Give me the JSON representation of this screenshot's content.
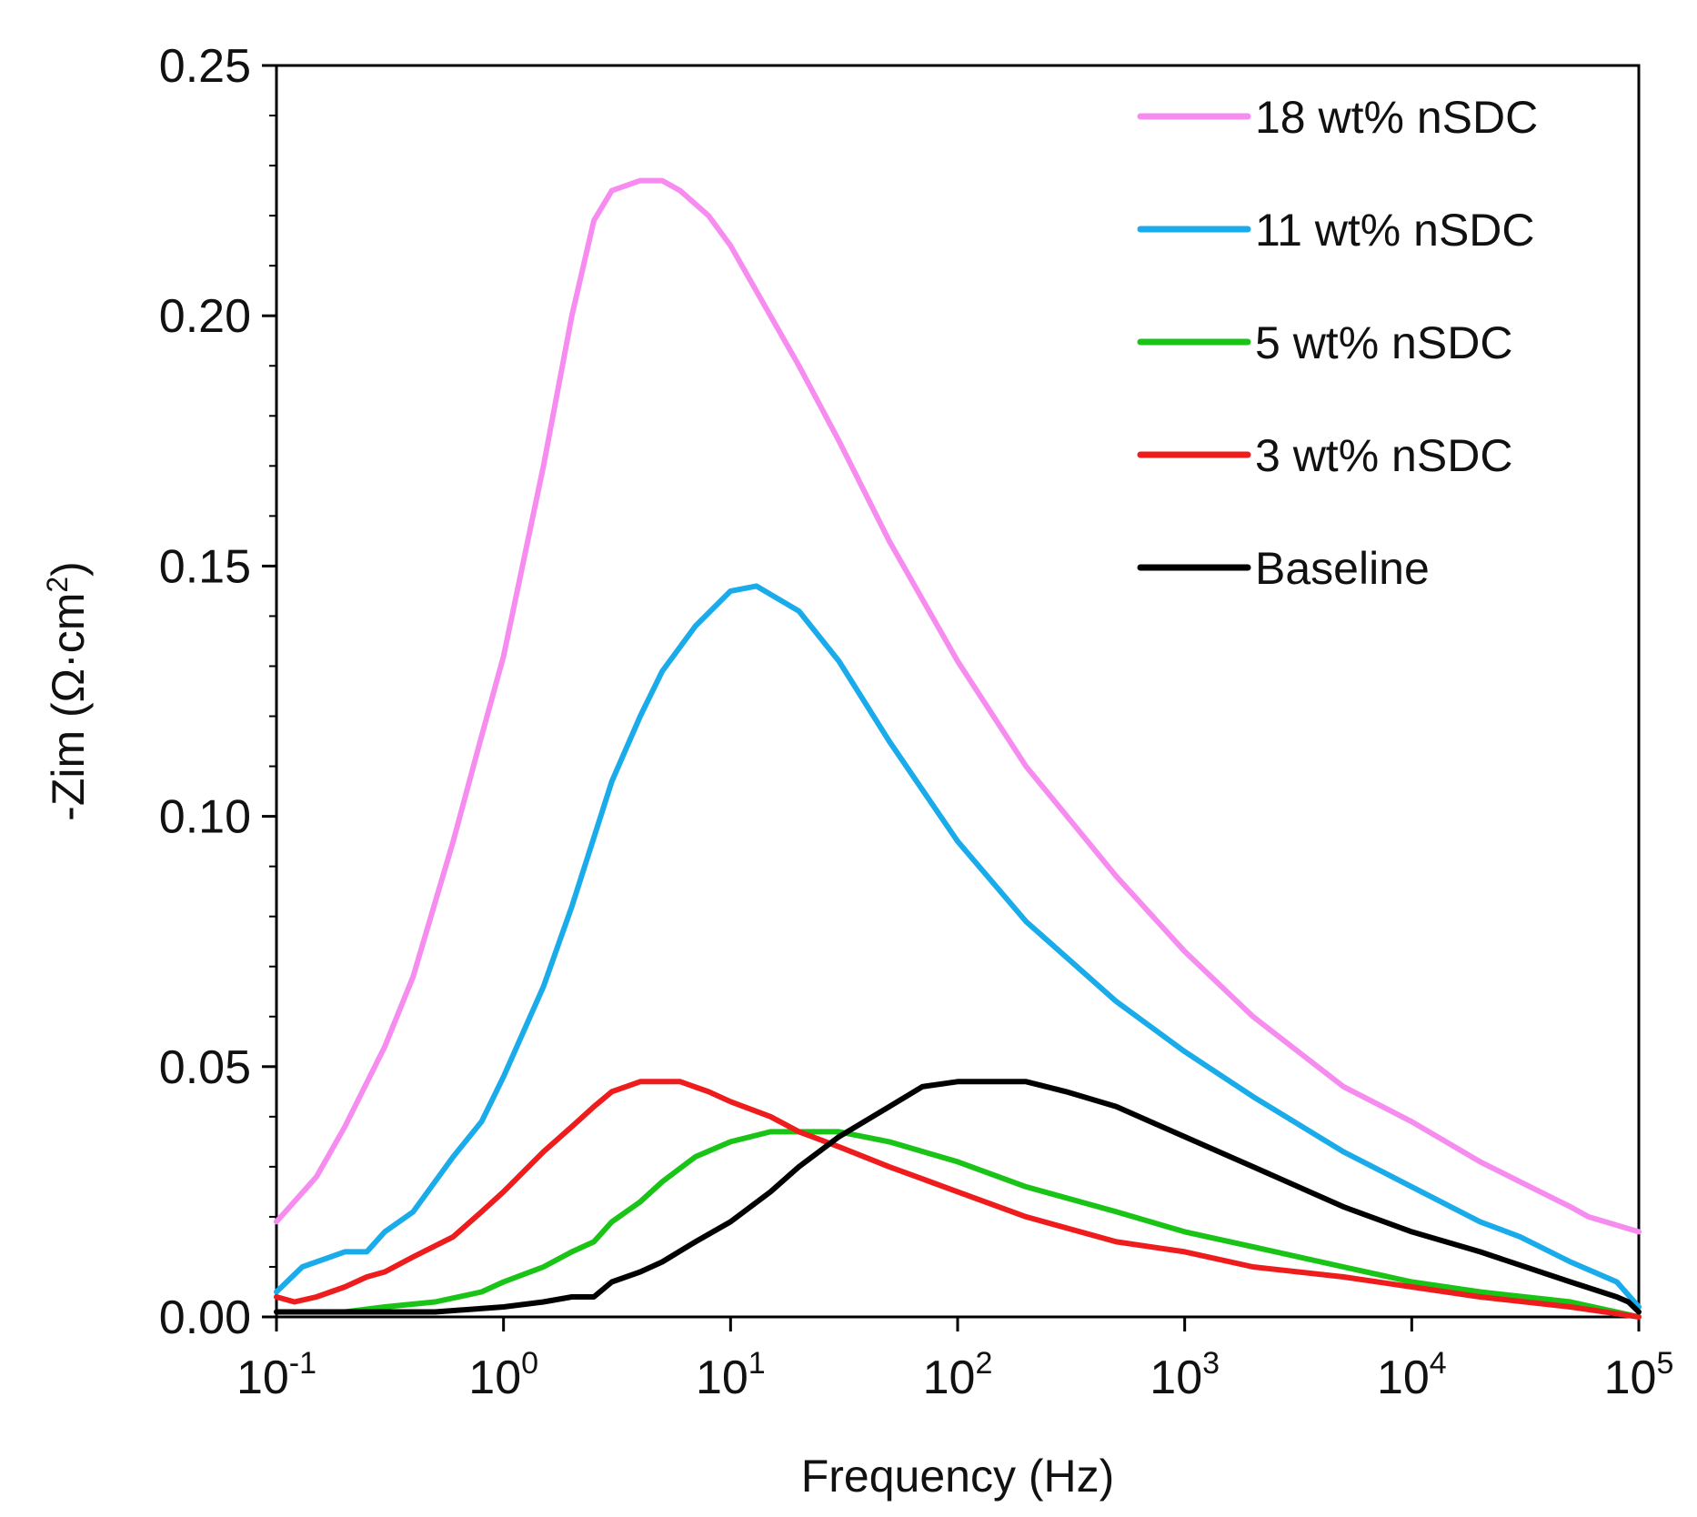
{
  "chart_data": {
    "type": "line",
    "title": "",
    "xlabel": "Frequency (Hz)",
    "ylabel_text": "-Zim (Ω·cm",
    "ylabel_sup": "2",
    "ylabel_close": ")",
    "x_scale": "log",
    "xlim": [
      0.1,
      100000
    ],
    "ylim": [
      0,
      0.25
    ],
    "x_ticks": [
      {
        "base": "10",
        "exp": "-1",
        "value": 0.1
      },
      {
        "base": "10",
        "exp": "0",
        "value": 1
      },
      {
        "base": "10",
        "exp": "1",
        "value": 10
      },
      {
        "base": "10",
        "exp": "2",
        "value": 100
      },
      {
        "base": "10",
        "exp": "3",
        "value": 1000
      },
      {
        "base": "10",
        "exp": "4",
        "value": 10000
      },
      {
        "base": "10",
        "exp": "5",
        "value": 100000
      }
    ],
    "y_ticks": [
      "0.00",
      "0.05",
      "0.10",
      "0.15",
      "0.20",
      "0.25"
    ],
    "y_tick_values": [
      0,
      0.05,
      0.1,
      0.15,
      0.2,
      0.25
    ],
    "grid": false,
    "legend_position": "top-right",
    "series": [
      {
        "name": "18 wt% nSDC",
        "color": "#f78cf0",
        "x": [
          0.1,
          0.15,
          0.2,
          0.3,
          0.4,
          0.6,
          0.8,
          1,
          1.5,
          2,
          2.5,
          3,
          4,
          5,
          6,
          8,
          10,
          20,
          30,
          50,
          100,
          200,
          500,
          1000,
          2000,
          5000,
          10000,
          20000,
          30000,
          50000,
          60000,
          100000
        ],
        "values": [
          0.019,
          0.028,
          0.038,
          0.054,
          0.068,
          0.095,
          0.116,
          0.132,
          0.17,
          0.2,
          0.219,
          0.225,
          0.227,
          0.227,
          0.225,
          0.22,
          0.214,
          0.19,
          0.175,
          0.155,
          0.131,
          0.11,
          0.088,
          0.073,
          0.06,
          0.046,
          0.039,
          0.031,
          0.027,
          0.022,
          0.02,
          0.017
        ]
      },
      {
        "name": "11 wt% nSDC",
        "color": "#1aabea",
        "x": [
          0.1,
          0.13,
          0.2,
          0.25,
          0.3,
          0.4,
          0.6,
          0.8,
          1,
          1.5,
          2,
          3,
          4,
          5,
          7,
          10,
          13,
          20,
          30,
          50,
          100,
          200,
          500,
          1000,
          2000,
          5000,
          10000,
          20000,
          30000,
          50000,
          80000,
          100000
        ],
        "values": [
          0.005,
          0.01,
          0.013,
          0.013,
          0.017,
          0.021,
          0.032,
          0.039,
          0.048,
          0.066,
          0.082,
          0.107,
          0.12,
          0.129,
          0.138,
          0.145,
          0.146,
          0.141,
          0.131,
          0.115,
          0.095,
          0.079,
          0.063,
          0.053,
          0.044,
          0.033,
          0.026,
          0.019,
          0.016,
          0.011,
          0.007,
          0.002
        ]
      },
      {
        "name": "5 wt% nSDC",
        "color": "#19c416",
        "x": [
          0.1,
          0.2,
          0.3,
          0.5,
          0.8,
          1,
          1.5,
          2,
          2.5,
          3,
          4,
          5,
          7,
          10,
          15,
          20,
          30,
          50,
          100,
          200,
          500,
          1000,
          2000,
          5000,
          10000,
          20000,
          50000,
          100000
        ],
        "values": [
          0.001,
          0.001,
          0.002,
          0.003,
          0.005,
          0.007,
          0.01,
          0.013,
          0.015,
          0.019,
          0.023,
          0.027,
          0.032,
          0.035,
          0.037,
          0.037,
          0.037,
          0.035,
          0.031,
          0.026,
          0.021,
          0.017,
          0.014,
          0.01,
          0.007,
          0.005,
          0.003,
          0
        ]
      },
      {
        "name": "3 wt% nSDC",
        "color": "#ee1c1c",
        "x": [
          0.1,
          0.12,
          0.15,
          0.2,
          0.25,
          0.3,
          0.4,
          0.6,
          0.8,
          1,
          1.5,
          2,
          2.5,
          3,
          4,
          5,
          6,
          8,
          10,
          15,
          20,
          30,
          50,
          100,
          200,
          500,
          1000,
          2000,
          5000,
          10000,
          20000,
          50000,
          100000
        ],
        "values": [
          0.004,
          0.003,
          0.004,
          0.006,
          0.008,
          0.009,
          0.012,
          0.016,
          0.021,
          0.025,
          0.033,
          0.038,
          0.042,
          0.045,
          0.047,
          0.047,
          0.047,
          0.045,
          0.043,
          0.04,
          0.037,
          0.034,
          0.03,
          0.025,
          0.02,
          0.015,
          0.013,
          0.01,
          0.008,
          0.006,
          0.004,
          0.002,
          0
        ]
      },
      {
        "name": "Baseline",
        "color": "#000000",
        "x": [
          0.1,
          0.2,
          0.3,
          0.5,
          1,
          1.5,
          2,
          2.5,
          3,
          4,
          5,
          7,
          10,
          15,
          20,
          30,
          50,
          70,
          100,
          150,
          200,
          300,
          500,
          1000,
          2000,
          5000,
          10000,
          20000,
          50000,
          80000,
          90000,
          100000
        ],
        "values": [
          0.001,
          0.001,
          0.001,
          0.001,
          0.002,
          0.003,
          0.004,
          0.004,
          0.007,
          0.009,
          0.011,
          0.015,
          0.019,
          0.025,
          0.03,
          0.036,
          0.042,
          0.046,
          0.047,
          0.047,
          0.047,
          0.045,
          0.042,
          0.036,
          0.03,
          0.022,
          0.017,
          0.013,
          0.007,
          0.004,
          0.003,
          0.001
        ]
      }
    ]
  }
}
